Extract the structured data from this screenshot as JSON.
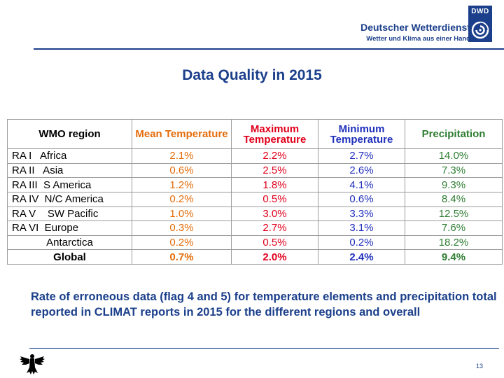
{
  "brand": {
    "badge": "DWD",
    "name": "Deutscher Wetterdienst",
    "tagline": "Wetter und Klima aus einer Hand",
    "color": "#1b3f8b"
  },
  "title": "Data Quality in 2015",
  "table": {
    "headers": {
      "region": "WMO region",
      "mean": "Mean Temperature",
      "max": "Maximum Temperature",
      "min": "Minimum Temperature",
      "precip": "Precipitation"
    },
    "rows": [
      {
        "region": "RA I   Africa",
        "mean": "2.1%",
        "max": "2.2%",
        "min": "2.7%",
        "precip": "14.0%"
      },
      {
        "region": "RA II   Asia",
        "mean": "0.6%",
        "max": "2.5%",
        "min": "2.6%",
        "precip": "7.3%"
      },
      {
        "region": "RA III  S America",
        "mean": "1.2%",
        "max": "1.8%",
        "min": "4.1%",
        "precip": "9.3%"
      },
      {
        "region": "RA IV  N/C America",
        "mean": "0.2%",
        "max": "0.5%",
        "min": "0.6%",
        "precip": "8.4%"
      },
      {
        "region": "RA V    SW Pacific",
        "mean": "1.0%",
        "max": "3.0%",
        "min": "3.3%",
        "precip": "12.5%"
      },
      {
        "region": "RA VI  Europe",
        "mean": "0.3%",
        "max": "2.7%",
        "min": "3.1%",
        "precip": "7.6%"
      },
      {
        "region": "Antarctica",
        "mean": "0.2%",
        "max": "0.5%",
        "min": "0.2%",
        "precip": "18.2%"
      },
      {
        "region": "Global",
        "mean": "0.7%",
        "max": "2.0%",
        "min": "2.4%",
        "precip": "9.4%"
      }
    ],
    "colors": {
      "mean": "#e46c0a",
      "max": "#e0001b",
      "min": "#1f2fbb",
      "precip": "#2e7d32"
    }
  },
  "caption": "Rate of erroneous data (flag 4 and 5) for temperature elements and precipitation total reported in CLIMAT reports in 2015 for the different regions and overall",
  "page_number": "13"
}
